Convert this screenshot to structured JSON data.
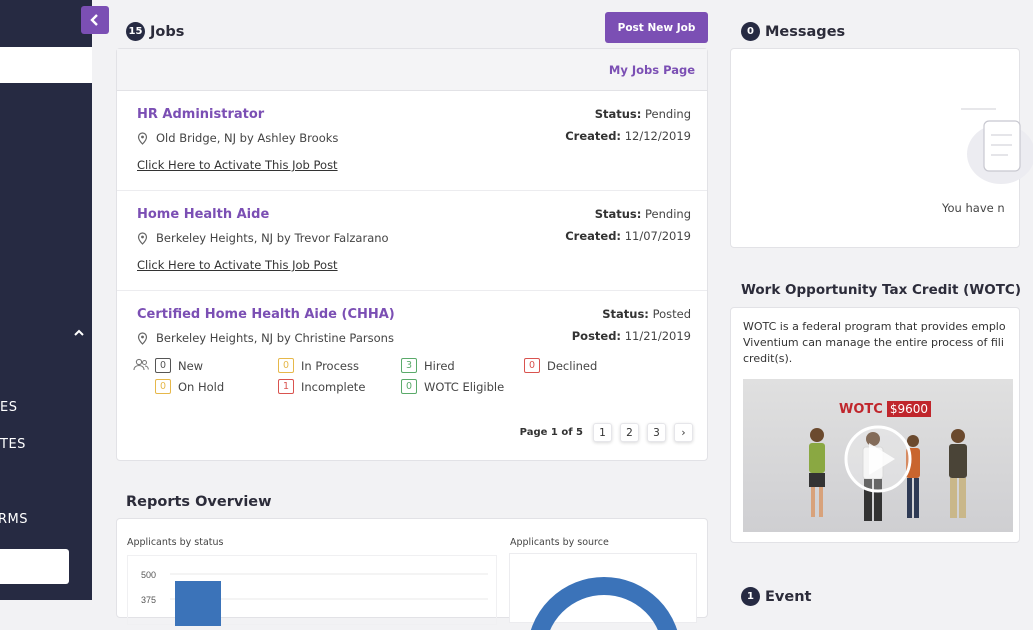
{
  "sidebar": {
    "items": [
      {
        "label": "ES"
      },
      {
        "label": "TES"
      },
      {
        "label": "RMS"
      }
    ]
  },
  "jobs": {
    "count": "15",
    "title": "Jobs",
    "post_button": "Post New Job",
    "my_jobs_link": "My Jobs Page",
    "list": [
      {
        "title": "HR Administrator",
        "location": "Old Bridge, NJ by Ashley Brooks",
        "status_label": "Status:",
        "status": "Pending",
        "date_label": "Created:",
        "date": "12/12/2019",
        "activate": "Click Here to Activate This Job Post"
      },
      {
        "title": "Home Health Aide",
        "location": "Berkeley Heights, NJ by Trevor Falzarano",
        "status_label": "Status:",
        "status": "Pending",
        "date_label": "Created:",
        "date": "11/07/2019",
        "activate": "Click Here to Activate This Job Post"
      },
      {
        "title": "Certified Home Health Aide (CHHA)",
        "location": "Berkeley Heights, NJ by Christine Parsons",
        "status_label": "Status:",
        "status": "Posted",
        "date_label": "Posted:",
        "date": "11/21/2019",
        "stats": [
          {
            "count": "0",
            "label": "New",
            "color": "#555555"
          },
          {
            "count": "0",
            "label": "In Process",
            "color": "#e6b84a"
          },
          {
            "count": "3",
            "label": "Hired",
            "color": "#5aaa6a"
          },
          {
            "count": "0",
            "label": "Declined",
            "color": "#d9534f"
          },
          {
            "count": "0",
            "label": "On Hold",
            "color": "#e6b84a"
          },
          {
            "count": "1",
            "label": "Incomplete",
            "color": "#d9534f"
          },
          {
            "count": "0",
            "label": "WOTC Eligible",
            "color": "#5aaa6a"
          }
        ]
      }
    ],
    "pager": {
      "label": "Page 1 of 5",
      "pages": [
        "1",
        "2",
        "3"
      ],
      "next": "›"
    }
  },
  "reports": {
    "title": "Reports Overview",
    "status_label": "Applicants by status",
    "source_label": "Applicants by source",
    "y_ticks": [
      "500",
      "375"
    ],
    "bar_value": 465,
    "y_max": 500
  },
  "messages": {
    "count": "0",
    "title": "Messages",
    "empty_text": "You have n"
  },
  "wotc": {
    "title": "Work Opportunity Tax Credit (WOTC)",
    "lines": [
      "WOTC is a federal program that provides emplo",
      "Viventium can manage the entire process of fili",
      "credit(s)."
    ],
    "video_logo": "WOTC",
    "video_amount": "$9600"
  },
  "event": {
    "count": "1",
    "title": "Event"
  },
  "colors": {
    "accent": "#7b4fb4",
    "sidebar": "#262a42"
  }
}
